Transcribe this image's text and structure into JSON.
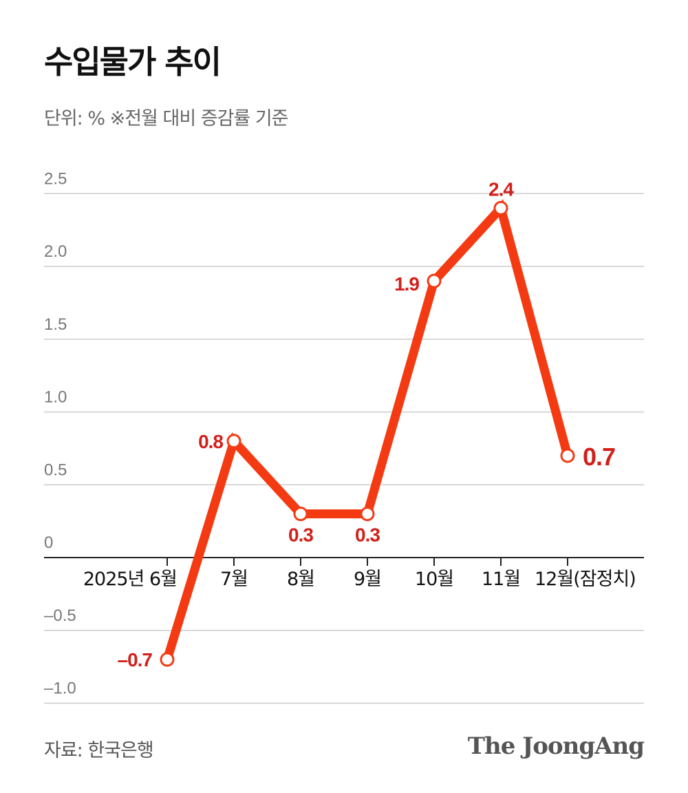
{
  "header": {
    "title": "수입물가 추이",
    "subtitle": "단위: % ※전월 대비 증감률 기준"
  },
  "footer": {
    "source": "자료: 한국은행",
    "brand": "The JoongAng"
  },
  "colors": {
    "line": "#f43a12",
    "label": "#d21f1a",
    "grid": "#cccccc",
    "axis": "#222222",
    "tick_text": "#777777"
  },
  "chart_data": {
    "type": "line",
    "title": "수입물가 추이",
    "ylabel": "",
    "xlabel": "",
    "ylim": [
      -1.0,
      2.5
    ],
    "yticks": [
      {
        "value": 2.5,
        "label": "2.5"
      },
      {
        "value": 2.0,
        "label": "2.0"
      },
      {
        "value": 1.5,
        "label": "1.5"
      },
      {
        "value": 1.0,
        "label": "1.0"
      },
      {
        "value": 0.5,
        "label": "0.5"
      },
      {
        "value": 0,
        "label": "0"
      },
      {
        "value": -0.5,
        "label": "–0.5"
      },
      {
        "value": -1.0,
        "label": "–1.0"
      }
    ],
    "grid": true,
    "categories": [
      "2025년 6월",
      "7월",
      "8월",
      "9월",
      "10월",
      "11월",
      "12월(잠정치)"
    ],
    "values": [
      -0.7,
      0.8,
      0.3,
      0.3,
      1.9,
      2.4,
      0.7
    ],
    "data_labels": [
      "–0.7",
      "0.8",
      "0.3",
      "0.3",
      "1.9",
      "2.4",
      "0.7"
    ]
  }
}
